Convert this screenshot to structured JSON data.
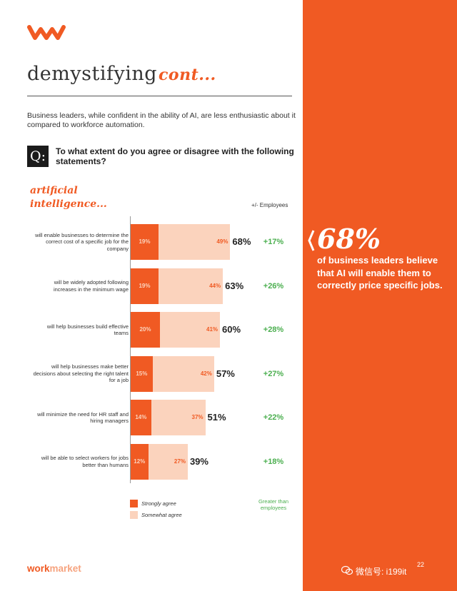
{
  "header": {
    "title": "demystifying",
    "title_suffix": "cont...",
    "intro": "Business leaders, while confident in the ability of AI, are less enthusiastic about it compared to workforce automation.",
    "q_badge": "Q:",
    "question": "To what extent do you agree or disagree with the following statements?"
  },
  "chart_data": {
    "type": "bar",
    "stacked": true,
    "orientation": "horizontal",
    "title": "artificial intelligence...",
    "extra_column_header": "+/- Employees",
    "categories": [
      "will enable businesses to determine the correct cost of a specific job for the company",
      "will be widely adopted following increases in the minimum wage",
      "will help businesses build effective teams",
      "will help businesses make better decisions about selecting the right talent for a job",
      "will minimize the need for HR staff and hiring managers",
      "will be able to select workers for jobs better than humans"
    ],
    "series": [
      {
        "name": "Strongly agree",
        "values": [
          19,
          19,
          20,
          15,
          14,
          12
        ],
        "color": "#f05a23"
      },
      {
        "name": "Somewhat agree",
        "values": [
          49,
          44,
          41,
          42,
          37,
          27
        ],
        "color": "#fbd3bd"
      }
    ],
    "totals": [
      "68%",
      "63%",
      "60%",
      "57%",
      "51%",
      "39%"
    ],
    "employee_diff": [
      "+17%",
      "+26%",
      "+28%",
      "+27%",
      "+22%",
      "+18%"
    ],
    "employee_diff_note": "Greater than employees",
    "legend": [
      "Strongly agree",
      "Somewhat agree"
    ],
    "legend_position": "bottom-left"
  },
  "callout": {
    "big_pct": "68%",
    "text": "of business leaders believe that AI will enable them to correctly price specific jobs."
  },
  "footer": {
    "logo_work": "work",
    "logo_market": "market",
    "page": "22",
    "watermark": "微信号: i199it"
  },
  "colors": {
    "accent": "#f05a23",
    "light": "#fbd3bd",
    "positive": "#4caf50"
  }
}
